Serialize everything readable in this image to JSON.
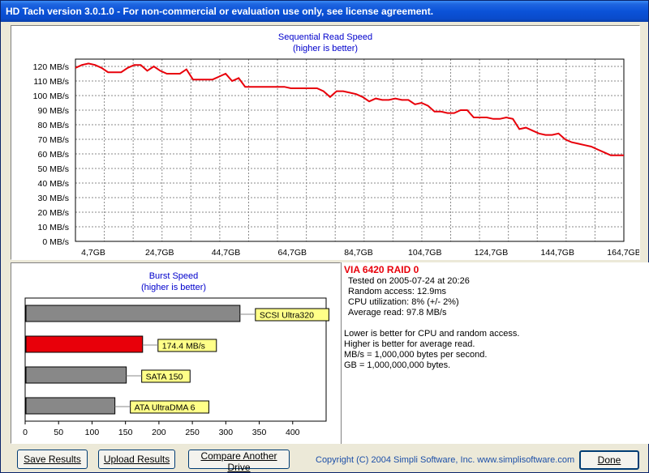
{
  "window": {
    "title": "HD Tach version 3.0.1.0  - For non-commercial or evaluation use only, see license agreement."
  },
  "colors": {
    "accent_red": "#e8000a",
    "bar_gray": "#888888",
    "title_blue": "#0000cc",
    "label_yellow": "#ffff88",
    "grid": "#8a8a8a"
  },
  "read_chart": {
    "title": "Sequential Read Speed",
    "subtitle": "(higher is better)",
    "chart_data": {
      "type": "line",
      "ylim": [
        0,
        125
      ],
      "y_ticks": [
        "0 MB/s",
        "10 MB/s",
        "20 MB/s",
        "30 MB/s",
        "40 MB/s",
        "50 MB/s",
        "60 MB/s",
        "70 MB/s",
        "80 MB/s",
        "90 MB/s",
        "100 MB/s",
        "110 MB/s",
        "120 MB/s"
      ],
      "x_ticks": [
        "4,7GB",
        "24,7GB",
        "44,7GB",
        "64,7GB",
        "84,7GB",
        "104,7GB",
        "124,7GB",
        "144,7GB",
        "164,7GB"
      ],
      "xlim": [
        0,
        168
      ],
      "grid": true,
      "series": [
        {
          "x": [
            0,
            2,
            4,
            6,
            8,
            10,
            12,
            14,
            16,
            18,
            20,
            22,
            24,
            26,
            28,
            30,
            32,
            34,
            36,
            38,
            40,
            42,
            44,
            46,
            48,
            50,
            52,
            54,
            56,
            58,
            60,
            62,
            64,
            66,
            68,
            70,
            72,
            74,
            76,
            78,
            80,
            82,
            84,
            86,
            88,
            90,
            92,
            94,
            96,
            98,
            100,
            102,
            104,
            106,
            108,
            110,
            112,
            114,
            116,
            118,
            120,
            122,
            124,
            126,
            128,
            130,
            132,
            134,
            136,
            138,
            140,
            142,
            144,
            146,
            148,
            150,
            152,
            154,
            156,
            158,
            160,
            162,
            164,
            166,
            168
          ],
          "y": [
            119,
            121,
            122,
            121,
            119,
            116,
            116,
            116,
            119,
            121,
            121,
            117,
            120,
            117,
            115,
            115,
            115,
            118,
            111,
            111,
            111,
            111,
            113,
            115,
            110,
            112,
            106,
            106,
            106,
            106,
            106,
            106,
            106,
            105,
            105,
            105,
            105,
            105,
            103,
            99,
            103,
            103,
            102,
            101,
            99,
            96,
            98,
            97,
            97,
            98,
            97,
            97,
            94,
            95,
            93,
            89,
            89,
            88,
            88,
            90,
            90,
            85,
            85,
            85,
            84,
            84,
            85,
            84,
            77,
            78,
            76,
            74,
            73,
            73,
            74,
            70,
            68,
            67,
            66,
            65,
            63,
            61,
            59,
            59,
            59
          ]
        }
      ]
    }
  },
  "burst_chart": {
    "title": "Burst Speed",
    "subtitle": "(higher is better)",
    "chart_data": {
      "type": "bar",
      "orientation": "horizontal",
      "xlim": [
        0,
        450
      ],
      "x_ticks": [
        "0",
        "50",
        "100",
        "150",
        "200",
        "250",
        "300",
        "350",
        "400"
      ],
      "bars": [
        {
          "label": "SCSI Ultra320",
          "value": 320,
          "color": "#888888"
        },
        {
          "label": "174.4 MB/s",
          "value": 174.4,
          "color": "#e8000a"
        },
        {
          "label": "SATA 150",
          "value": 150,
          "color": "#888888"
        },
        {
          "label": "ATA UltraDMA 6",
          "value": 133,
          "color": "#888888"
        }
      ]
    }
  },
  "info": {
    "drive_name": "VIA 6420 RAID 0",
    "tested": "Tested on 2005-07-24 at 20:26",
    "random_access": "Random access: 12.9ms",
    "cpu": "CPU utilization: 8% (+/- 2%)",
    "avg_read": "Average read: 97.8 MB/s",
    "note1": "Lower is better for CPU and random access.",
    "note2": "Higher is better for average read.",
    "note3": "MB/s = 1,000,000 bytes per second.",
    "note4": "GB = 1,000,000,000 bytes."
  },
  "buttons": {
    "save": "Save Results",
    "upload": "Upload Results",
    "compare": "Compare Another Drive",
    "done": "Done"
  },
  "footer": {
    "copyright": "Copyright (C) 2004 Simpli Software, Inc. www.simplisoftware.com"
  }
}
